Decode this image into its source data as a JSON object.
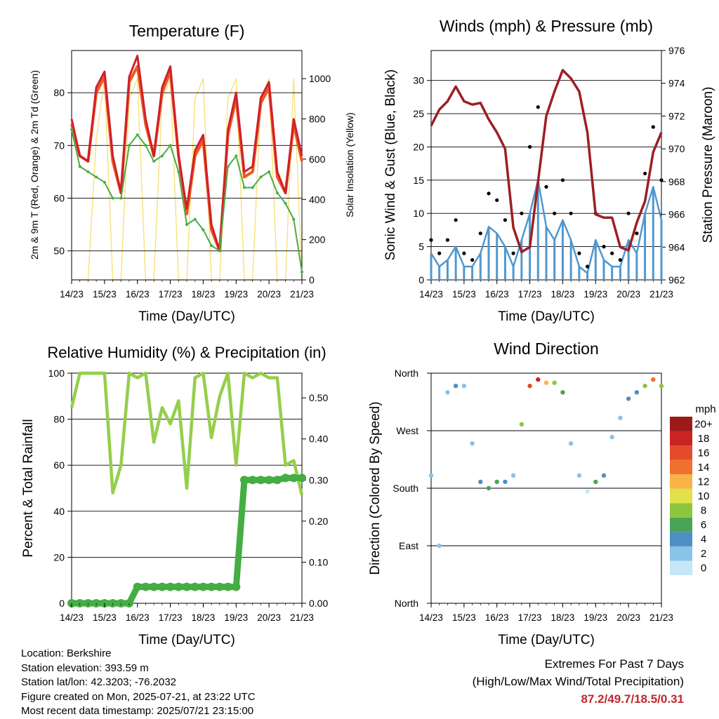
{
  "colors": {
    "temp2m": "#ef5a1e",
    "temp9m": "#d0202a",
    "dewpoint": "#4aad46",
    "solar": "#f8e27a",
    "wind": "#4f98d0",
    "gust": "#000000",
    "pressure": "#9c1f24",
    "rh": "#94cf4c",
    "precip": "#44ad44",
    "extremes": "#c0282d"
  },
  "x_ticks": [
    "14/23",
    "15/23",
    "16/23",
    "17/23",
    "18/23",
    "19/23",
    "20/23",
    "21/23"
  ],
  "panels": {
    "temperature": {
      "title": "Temperature (F)",
      "xlabel": "Time (Day/UTC)",
      "ylabel_left": "2m & 9m T (Red, Orange) & 2m Td (Green)",
      "ylabel_right": "Solar Insolation (Yellow)"
    },
    "winds": {
      "title": "Winds (mph) & Pressure (mb)",
      "xlabel": "Time (Day/UTC)",
      "ylabel_left": "Sonic Wind & Gust (Blue, Black)",
      "ylabel_right": "Station Pressure (Maroon)"
    },
    "humidity": {
      "title": "Relative Humidity (%) & Precipitation (in)",
      "xlabel": "Time (Day/UTC)",
      "ylabel_left": "Percent & Total Rainfall"
    },
    "direction": {
      "title": "Wind Direction",
      "xlabel": "Time (Day/UTC)",
      "ylabel_left": "Direction (Colored By Speed)",
      "legend_title": "mph"
    }
  },
  "chart_data": [
    {
      "type": "line",
      "title": "Temperature (F)",
      "xlabel": "Time (Day/UTC)",
      "x": [
        "14/23",
        "15/06",
        "15/12",
        "15/18",
        "16/00",
        "16/06",
        "16/12",
        "16/18",
        "17/00",
        "17/06",
        "17/12",
        "17/18",
        "18/00",
        "18/06",
        "18/12",
        "18/18",
        "19/00",
        "19/06",
        "19/12",
        "19/18",
        "20/00",
        "20/06",
        "20/12",
        "20/18",
        "21/00",
        "21/06",
        "21/12",
        "21/18",
        "21/23"
      ],
      "series": [
        {
          "name": "2m T",
          "axis": "left",
          "values": [
            74,
            68,
            67,
            80,
            83,
            67,
            61,
            82,
            85,
            74,
            68,
            80,
            84,
            68,
            57,
            68,
            71,
            54,
            50,
            72,
            79,
            64,
            65,
            78,
            81,
            64,
            61,
            74,
            67
          ]
        },
        {
          "name": "9m T",
          "axis": "left",
          "values": [
            75,
            68,
            67,
            81,
            84,
            68,
            61,
            83,
            87,
            75,
            68,
            81,
            85,
            68,
            58,
            69,
            72,
            55,
            50,
            73,
            80,
            65,
            66,
            79,
            82,
            65,
            61,
            75,
            68
          ]
        },
        {
          "name": "2m Td",
          "axis": "left",
          "values": [
            73,
            66,
            65,
            64,
            63,
            60,
            60,
            70,
            72,
            70,
            67,
            68,
            70,
            65,
            55,
            56,
            54,
            51,
            50,
            66,
            68,
            62,
            62,
            64,
            65,
            61,
            59,
            56,
            46
          ]
        },
        {
          "name": "Solar Insolation",
          "axis": "right",
          "values": [
            0,
            0,
            0,
            700,
            1000,
            0,
            0,
            900,
            1000,
            0,
            0,
            900,
            1000,
            0,
            0,
            900,
            1000,
            0,
            0,
            900,
            1000,
            0,
            0,
            900,
            1000,
            0,
            0,
            1000,
            0
          ]
        }
      ],
      "ylabel": "2m & 9m T (Red, Orange) & 2m Td (Green)",
      "y2label": "Solar Insolation (Yellow)",
      "ylim": [
        44.5,
        88
      ],
      "y_ticks": [
        50,
        60,
        70,
        80
      ],
      "y2lim": [
        0,
        1140
      ],
      "y2_ticks": [
        0,
        200,
        400,
        600,
        800,
        1000
      ],
      "grid": true
    },
    {
      "type": "scatter",
      "title": "Winds (mph) & Pressure (mb)",
      "xlabel": "Time (Day/UTC)",
      "x": [
        "14/23",
        "15/06",
        "15/12",
        "15/18",
        "16/00",
        "16/06",
        "16/12",
        "16/18",
        "17/00",
        "17/06",
        "17/12",
        "17/18",
        "18/00",
        "18/06",
        "18/12",
        "18/18",
        "19/00",
        "19/06",
        "19/12",
        "19/18",
        "20/00",
        "20/06",
        "20/12",
        "20/18",
        "21/00",
        "21/06",
        "21/12",
        "21/18",
        "21/23"
      ],
      "series": [
        {
          "name": "Sonic Wind",
          "axis": "left",
          "values": [
            4,
            2,
            3,
            5,
            2,
            2,
            4,
            8,
            7,
            5,
            2,
            6,
            10,
            15,
            8,
            6,
            9,
            6,
            2,
            1,
            6,
            3,
            2,
            2,
            6,
            4,
            10,
            14,
            9
          ]
        },
        {
          "name": "Gust",
          "axis": "left",
          "values": [
            6,
            4,
            6,
            9,
            4,
            3,
            7,
            13,
            12,
            9,
            4,
            10,
            20,
            26,
            14,
            10,
            15,
            10,
            4,
            2,
            10,
            5,
            4,
            3,
            10,
            7,
            16,
            23,
            15
          ]
        },
        {
          "name": "Station Pressure",
          "axis": "right",
          "values": [
            971.4,
            972.4,
            972.9,
            973.8,
            972.9,
            972.7,
            972.8,
            971.8,
            971.0,
            970.0,
            965.2,
            963.7,
            964.0,
            968.0,
            972.0,
            973.5,
            974.8,
            974.3,
            973.5,
            971.0,
            966.0,
            965.8,
            965.8,
            964.0,
            963.8,
            965.5,
            966.8,
            969.8,
            971.0
          ]
        }
      ],
      "ylabel": "Sonic Wind & Gust (Blue, Black)",
      "y2label": "Station Pressure (Maroon)",
      "ylim": [
        0,
        34.5
      ],
      "y_ticks": [
        0,
        5,
        10,
        15,
        20,
        25,
        30
      ],
      "y2lim": [
        962,
        976
      ],
      "y2_ticks": [
        962,
        964,
        966,
        968,
        970,
        972,
        974,
        976
      ],
      "grid": true
    },
    {
      "type": "line",
      "title": "Relative Humidity (%) & Precipitation (in)",
      "xlabel": "Time (Day/UTC)",
      "x": [
        "14/23",
        "15/06",
        "15/12",
        "15/18",
        "16/00",
        "16/06",
        "16/12",
        "16/18",
        "17/00",
        "17/06",
        "17/12",
        "17/18",
        "18/00",
        "18/06",
        "18/12",
        "18/18",
        "19/00",
        "19/06",
        "19/12",
        "19/18",
        "20/00",
        "20/06",
        "20/12",
        "20/18",
        "21/00",
        "21/06",
        "21/12",
        "21/18",
        "21/23"
      ],
      "series": [
        {
          "name": "Relative Humidity",
          "axis": "left",
          "values": [
            85,
            100,
            100,
            100,
            100,
            48,
            60,
            100,
            98,
            100,
            70,
            85,
            78,
            88,
            50,
            98,
            100,
            72,
            90,
            100,
            60,
            100,
            98,
            100,
            98,
            98,
            60,
            62,
            47
          ]
        },
        {
          "name": "Total Rainfall",
          "axis": "right",
          "values": [
            0,
            0,
            0,
            0,
            0,
            0,
            0,
            0,
            0.04,
            0.04,
            0.04,
            0.04,
            0.04,
            0.04,
            0.04,
            0.04,
            0.04,
            0.04,
            0.04,
            0.04,
            0.04,
            0.3,
            0.3,
            0.3,
            0.3,
            0.3,
            0.305,
            0.305,
            0.305
          ]
        }
      ],
      "ylabel": "Percent & Total Rainfall",
      "ylim": [
        0,
        100
      ],
      "y_ticks": [
        0,
        20,
        40,
        60,
        80,
        100
      ],
      "y2lim": [
        0,
        0.56
      ],
      "y2_ticks": [
        "0.00",
        "0.10",
        "0.20",
        "0.30",
        "0.40",
        "0.50"
      ],
      "grid": true
    },
    {
      "type": "scatter",
      "title": "Wind Direction",
      "xlabel": "Time (Day/UTC)",
      "x": [
        "14/23",
        "15/06",
        "15/12",
        "15/18",
        "16/00",
        "16/06",
        "16/12",
        "16/18",
        "17/00",
        "17/06",
        "17/12",
        "17/18",
        "18/00",
        "18/06",
        "18/12",
        "18/18",
        "19/00",
        "19/06",
        "19/12",
        "19/18",
        "20/00",
        "20/06",
        "20/12",
        "20/18",
        "21/00",
        "21/06",
        "21/12",
        "21/18",
        "21/23"
      ],
      "series": [
        {
          "name": "Direction",
          "values": [
            200,
            90,
            330,
            340,
            340,
            250,
            190,
            180,
            190,
            190,
            200,
            280,
            340,
            350,
            345,
            345,
            330,
            250,
            200,
            175,
            190,
            200,
            260,
            290,
            320,
            330,
            340,
            350,
            340
          ]
        },
        {
          "name": "Speed",
          "values": [
            3,
            2,
            3,
            4,
            2,
            2,
            5,
            7,
            6,
            5,
            3,
            8,
            16,
            18,
            12,
            9,
            6,
            3,
            2,
            1,
            7,
            4,
            3,
            2,
            5,
            4,
            8,
            14,
            9
          ]
        }
      ],
      "ylabel": "Direction (Colored By Speed)",
      "y_ticks": [
        "North",
        "East",
        "South",
        "West",
        "North"
      ],
      "ylim": [
        0,
        360
      ],
      "legend": {
        "title": "mph",
        "levels": [
          "0",
          "2",
          "4",
          "6",
          "8",
          "10",
          "12",
          "14",
          "16",
          "18",
          "20+"
        ],
        "colors": [
          "#c6e7f7",
          "#88c3e8",
          "#4f8fc6",
          "#4aa457",
          "#8cc63e",
          "#e3e14a",
          "#f9b347",
          "#f0702e",
          "#e34b2a",
          "#c92323",
          "#9c1a1a"
        ]
      },
      "grid": true
    }
  ],
  "info": {
    "location": "Location: Berkshire",
    "elevation": "Station elevation: 393.59 m",
    "latlon": "Station lat/lon: 42.3203; -76.2032",
    "created": "Figure created on Mon, 2025-07-21, at 23:22 UTC",
    "recent": "Most recent data timestamp: 2025/07/21 23:15:00"
  },
  "extremes": {
    "line1": "Extremes For Past 7 Days",
    "line2": "(High/Low/Max Wind/Total Precipitation)",
    "values": "87.2/49.7/18.5/0.31"
  }
}
